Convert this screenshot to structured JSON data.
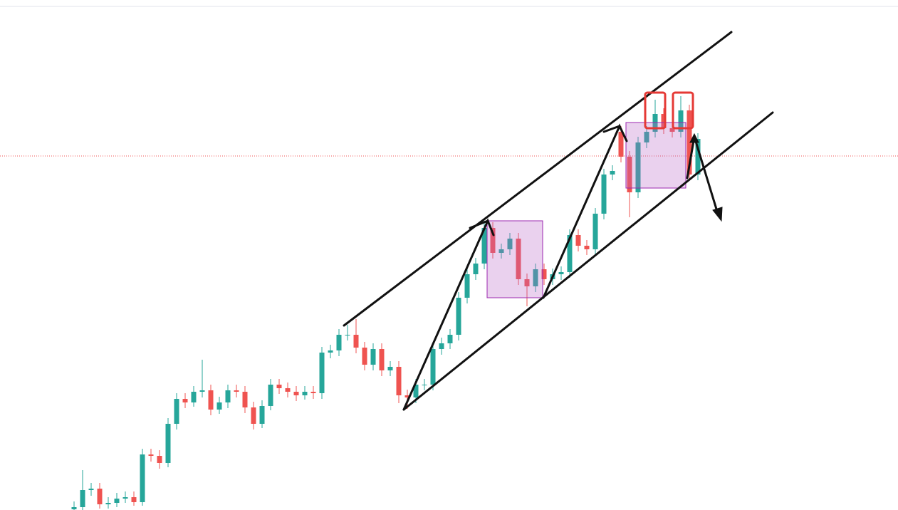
{
  "chart_data": {
    "type": "candlestick",
    "open": [
      1,
      4,
      28,
      30,
      8,
      10,
      16,
      18,
      11,
      78,
      76,
      66,
      121,
      156,
      151,
      166,
      168,
      141,
      151,
      168,
      166,
      144,
      121,
      146,
      176,
      171,
      166,
      161,
      166,
      164,
      221,
      224,
      246,
      246,
      228,
      204,
      226,
      196,
      201,
      161,
      158,
      176,
      176,
      226,
      234,
      246,
      298,
      331,
      346,
      396,
      361,
      366,
      381,
      324,
      314,
      338,
      324,
      331,
      334,
      386,
      371,
      366,
      416,
      471,
      531,
      496,
      446,
      516,
      531,
      556,
      536,
      531,
      561,
      471
    ],
    "high": [
      12,
      56,
      38,
      38,
      18,
      24,
      26,
      26,
      86,
      86,
      84,
      129,
      164,
      164,
      174,
      211,
      176,
      159,
      176,
      176,
      174,
      152,
      154,
      184,
      184,
      179,
      174,
      174,
      174,
      229,
      232,
      254,
      260,
      268,
      236,
      234,
      234,
      209,
      209,
      169,
      184,
      184,
      234,
      242,
      254,
      306,
      339,
      354,
      406,
      404,
      374,
      389,
      389,
      332,
      346,
      346,
      339,
      342,
      394,
      394,
      379,
      424,
      479,
      484,
      539,
      504,
      524,
      539,
      576,
      564,
      544,
      581,
      569,
      529
    ],
    "low": [
      0,
      0,
      20,
      2,
      2,
      4,
      10,
      6,
      6,
      68,
      58,
      60,
      113,
      143,
      145,
      158,
      133,
      135,
      143,
      158,
      136,
      113,
      115,
      140,
      163,
      158,
      153,
      155,
      156,
      156,
      213,
      216,
      238,
      220,
      196,
      196,
      188,
      188,
      150,
      142,
      150,
      168,
      168,
      218,
      226,
      238,
      290,
      323,
      338,
      353,
      353,
      358,
      316,
      286,
      306,
      316,
      316,
      323,
      326,
      363,
      358,
      358,
      408,
      463,
      488,
      411,
      438,
      508,
      523,
      528,
      523,
      523,
      463,
      463
    ],
    "close": [
      4,
      28,
      30,
      8,
      10,
      16,
      18,
      11,
      78,
      76,
      66,
      121,
      156,
      151,
      166,
      168,
      141,
      151,
      168,
      166,
      144,
      121,
      146,
      176,
      171,
      166,
      161,
      166,
      164,
      221,
      224,
      246,
      246,
      228,
      204,
      226,
      196,
      201,
      161,
      158,
      176,
      176,
      226,
      234,
      246,
      298,
      331,
      346,
      396,
      361,
      366,
      381,
      324,
      314,
      338,
      324,
      331,
      334,
      386,
      371,
      366,
      416,
      471,
      476,
      496,
      446,
      516,
      531,
      556,
      536,
      531,
      561,
      471,
      521
    ],
    "up_color": "#26a69a",
    "down_color": "#ef5350",
    "ylim": [
      0,
      716
    ]
  }
}
